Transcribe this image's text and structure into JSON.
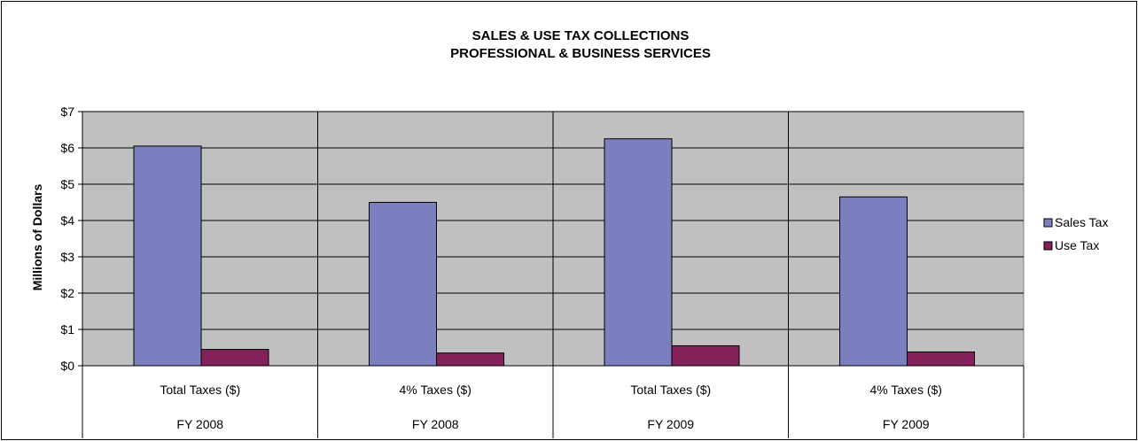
{
  "chart_data": {
    "type": "bar",
    "title": "SALES & USE TAX COLLECTIONS",
    "subtitle": "PROFESSIONAL & BUSINESS SERVICES",
    "ylabel": "Millions of Dollars",
    "xlabel": "",
    "ylim": [
      0,
      7
    ],
    "yticks": [
      "$0",
      "$1",
      "$2",
      "$3",
      "$4",
      "$5",
      "$6",
      "$7"
    ],
    "categories": [
      {
        "label": "Total Taxes ($)",
        "group": "FY 2008"
      },
      {
        "label": "4% Taxes ($)",
        "group": "FY 2008"
      },
      {
        "label": "Total Taxes ($)",
        "group": "FY 2009"
      },
      {
        "label": "4% Taxes ($)",
        "group": "FY 2009"
      }
    ],
    "series": [
      {
        "name": "Sales Tax",
        "color": "#7b7fc0",
        "values": [
          6.05,
          4.5,
          6.25,
          4.65
        ]
      },
      {
        "name": "Use Tax",
        "color": "#84215a",
        "values": [
          0.45,
          0.35,
          0.55,
          0.38
        ]
      }
    ],
    "grid": true,
    "plot_background": "#c0c0c0",
    "legend_position": "right"
  }
}
